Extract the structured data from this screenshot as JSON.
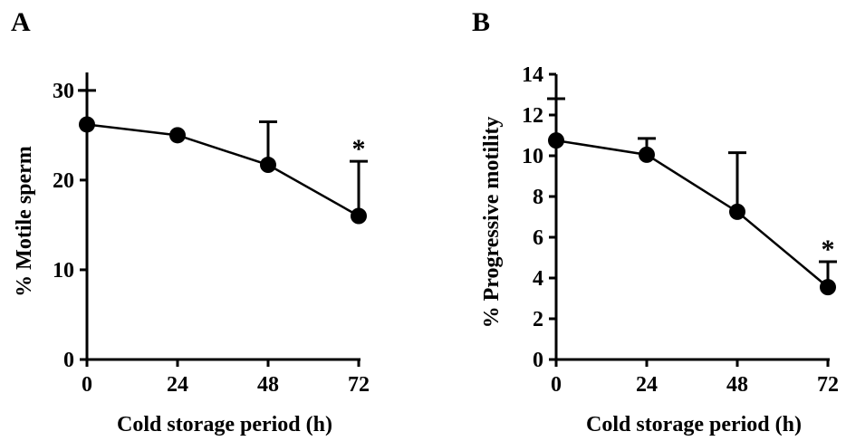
{
  "chart_data": [
    {
      "type": "line",
      "panel_label": "A",
      "xlabel": "Cold storage period (h)",
      "ylabel": "% Motile sperm",
      "x": [
        0,
        24,
        48,
        72
      ],
      "x_ticks": [
        "0",
        "24",
        "48",
        "72"
      ],
      "y_ticks": [
        "0",
        "10",
        "20",
        "30"
      ],
      "xlim": [
        0,
        72
      ],
      "ylim": [
        0,
        32
      ],
      "series": [
        {
          "values": [
            26.2,
            25.0,
            21.7,
            16.0
          ],
          "error_upper": [
            30.0,
            25.0,
            26.5,
            22.1
          ]
        }
      ],
      "annotations": [
        {
          "x": 72,
          "text": "*"
        }
      ],
      "grid": false,
      "color": "#000000"
    },
    {
      "type": "line",
      "panel_label": "B",
      "xlabel": "Cold storage period (h)",
      "ylabel": "% Progressive motility",
      "x": [
        0,
        24,
        48,
        72
      ],
      "x_ticks": [
        "0",
        "24",
        "48",
        "72"
      ],
      "y_ticks": [
        "0",
        "2",
        "4",
        "6",
        "8",
        "10",
        "12",
        "14"
      ],
      "xlim": [
        0,
        72
      ],
      "ylim": [
        0,
        14
      ],
      "series": [
        {
          "values": [
            10.75,
            10.05,
            7.25,
            3.55
          ],
          "error_upper": [
            12.8,
            10.85,
            10.15,
            4.8
          ]
        }
      ],
      "annotations": [
        {
          "x": 72,
          "text": "*"
        }
      ],
      "grid": false,
      "color": "#000000"
    }
  ]
}
